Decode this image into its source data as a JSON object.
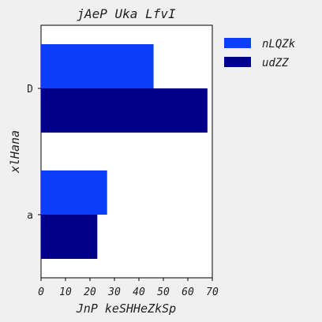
{
  "chart_data": {
    "type": "bar",
    "orientation": "horizontal",
    "title": "jAeP Uka LfvI",
    "xlabel": "JnP keSHHeZkSp",
    "ylabel": "xlHana",
    "categories": [
      "D",
      "a"
    ],
    "xlim": [
      0,
      70
    ],
    "xticks": [
      0,
      10,
      20,
      30,
      40,
      50,
      60,
      70
    ],
    "grid": false,
    "legend_position": "right",
    "series": [
      {
        "name": "nLQZk",
        "color": "#0a3ff7",
        "values": [
          46,
          27
        ]
      },
      {
        "name": "udZZ",
        "color": "#00008b",
        "values": [
          68,
          23
        ]
      }
    ]
  }
}
